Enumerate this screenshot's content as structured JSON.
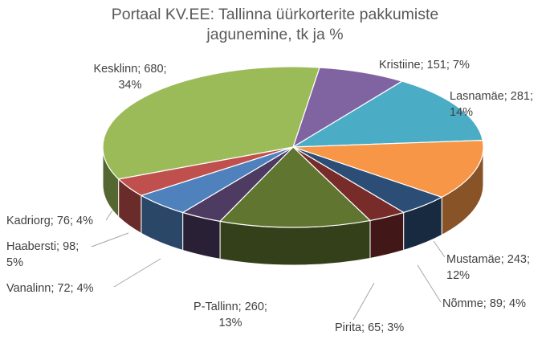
{
  "chart_data": {
    "type": "pie",
    "title_lines": [
      "Portaal KV.EE: Tallinna üürkorterite pakkumiste",
      "jagunemine, tk ja %"
    ],
    "slices": [
      {
        "name": "Kristiine",
        "value": 151,
        "pct": "7%",
        "color": "#8064A2",
        "label_lines": [
          "Kristiine; 151; 7%"
        ]
      },
      {
        "name": "Lasnamäe",
        "value": 281,
        "pct": "14%",
        "color": "#4BACC6",
        "label_lines": [
          "Lasnamäe; 281;",
          "14%"
        ]
      },
      {
        "name": "Mustamäe",
        "value": 243,
        "pct": "12%",
        "color": "#F79646",
        "label_lines": [
          "Mustamäe; 243;",
          "12%"
        ]
      },
      {
        "name": "Nõmme",
        "value": 89,
        "pct": "4%",
        "color": "#2C4D75",
        "label_lines": [
          "Nõmme; 89; 4%"
        ]
      },
      {
        "name": "Pirita",
        "value": 65,
        "pct": "3%",
        "color": "#772C2A",
        "label_lines": [
          "Pirita; 65; 3%"
        ]
      },
      {
        "name": "P-Tallinn",
        "value": 260,
        "pct": "13%",
        "color": "#5F7530",
        "label_lines": [
          "P-Tallinn; 260;",
          "13%"
        ]
      },
      {
        "name": "Vanalinn",
        "value": 72,
        "pct": "4%",
        "color": "#4D3B62",
        "label_lines": [
          "Vanalinn; 72; 4%"
        ]
      },
      {
        "name": "Haabersti",
        "value": 98,
        "pct": "5%",
        "color": "#4F81BD",
        "label_lines": [
          "Haabersti; 98;",
          "5%"
        ]
      },
      {
        "name": "Kadriorg",
        "value": 76,
        "pct": "4%",
        "color": "#C0504D",
        "label_lines": [
          "Kadriorg; 76; 4%"
        ]
      },
      {
        "name": "Kesklinn",
        "value": 680,
        "pct": "34%",
        "color": "#9BBB59",
        "label_lines": [
          "Kesklinn; 680;",
          "34%"
        ]
      }
    ],
    "style": "3d-pie",
    "legend": "none"
  }
}
